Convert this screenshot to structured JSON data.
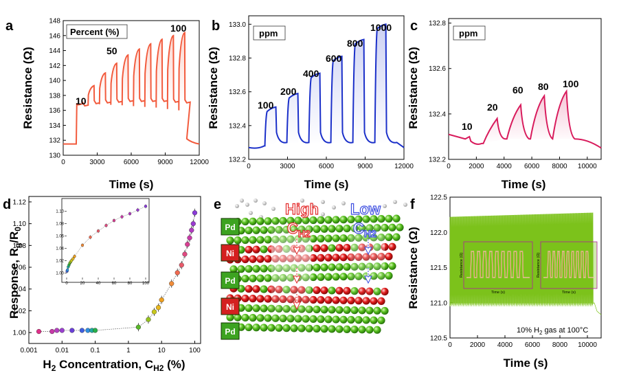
{
  "panels": {
    "a": {
      "letter": "a",
      "box_label": "Percent (%)",
      "ylabel": "Resistance (Ω)",
      "xlabel": "Time (s)",
      "yticks": [
        "130",
        "132",
        "134",
        "136",
        "138",
        "140",
        "142",
        "144",
        "146",
        "148"
      ],
      "xticks": [
        "0",
        "3000",
        "6000",
        "9000",
        "12000"
      ],
      "labels": [
        "10",
        "50",
        "100"
      ]
    },
    "b": {
      "letter": "b",
      "box_label": "ppm",
      "ylabel": "Resistance (Ω)",
      "xlabel": "Time (s)",
      "yticks": [
        "132.2",
        "132.4",
        "132.6",
        "132.8",
        "133.0"
      ],
      "xticks": [
        "0",
        "3000",
        "6000",
        "9000",
        "12000"
      ],
      "labels": [
        "100",
        "200",
        "400",
        "600",
        "800",
        "1000"
      ]
    },
    "c": {
      "letter": "c",
      "box_label": "ppm",
      "ylabel": "Resistance (Ω)",
      "xlabel": "Time (s)",
      "yticks": [
        "132.2",
        "132.4",
        "132.6",
        "132.8"
      ],
      "xticks": [
        "0",
        "2000",
        "4000",
        "6000",
        "8000",
        "10000"
      ],
      "labels": [
        "10",
        "20",
        "60",
        "80",
        "100"
      ]
    },
    "d": {
      "letter": "d",
      "ylabel": "Response, R",
      "ylabel_sub1": "g",
      "ylabel_mid": "/R",
      "ylabel_sub2": "0",
      "xlabel_pre": "H",
      "xlabel_sub": "2",
      "xlabel_mid": " Concentration, C",
      "xlabel_sub2": "H2",
      "xlabel_post": " (%)",
      "yticks": [
        "1.00",
        "1.02",
        "1.04",
        "1.06",
        "1.08",
        "1.10",
        "1.12"
      ],
      "xticks": [
        "0.001",
        "0.01",
        "0.1",
        "1",
        "10",
        "100"
      ],
      "inset_xticks": [
        "0",
        "20",
        "40",
        "60",
        "80",
        "100"
      ],
      "inset_yticks": [
        "1.00",
        "1.02",
        "1.04",
        "1.06",
        "1.08",
        "1.10"
      ]
    },
    "e": {
      "letter": "e",
      "layers": [
        "Pd",
        "Ni",
        "Pd",
        "Ni",
        "Pd"
      ],
      "high_label": "High",
      "high_c": "C",
      "high_sub": "H2",
      "low_label": "Low",
      "low_c": "C",
      "low_sub": "H2"
    },
    "f": {
      "letter": "f",
      "ylabel": "Resistance (Ω)",
      "xlabel": "Time (s)",
      "yticks": [
        "120.5",
        "121.0",
        "121.5",
        "122.0",
        "122.5"
      ],
      "xticks": [
        "0",
        "2000",
        "4000",
        "6000",
        "8000",
        "10000"
      ],
      "annotation_pre": "10% H",
      "annotation_sub": "2",
      "annotation_post": " gas at 100°C",
      "inset_ylabel": "Resistance (Ω)",
      "inset_xlabel": "Time (s)"
    }
  },
  "chart_data": [
    {
      "type": "line",
      "panel": "a",
      "title": "Percent (%)",
      "xlabel": "Time (s)",
      "ylabel": "Resistance (Ω)",
      "xlim": [
        0,
        12000
      ],
      "ylim": [
        130,
        148
      ],
      "color": "#f25a3c",
      "pulse_peaks": [
        136.9,
        139.3,
        141.0,
        142.3,
        143.4,
        144.2,
        144.9,
        145.5,
        146.0,
        146.4
      ],
      "pulse_bases": [
        136.7,
        137.0,
        137.1,
        137.2,
        137.3,
        137.3,
        137.3,
        137.3,
        137.2,
        137.1
      ],
      "baseline": 131.5,
      "labeled": {
        "10": 136.9,
        "50": 143.4,
        "100": 146.4
      }
    },
    {
      "type": "line",
      "panel": "b",
      "title": "ppm",
      "xlabel": "Time (s)",
      "ylabel": "Resistance (Ω)",
      "xlim": [
        0,
        12000
      ],
      "ylim": [
        132.2,
        133.05
      ],
      "color": "#1a2fc9",
      "concentrations_ppm": [
        100,
        200,
        400,
        600,
        800,
        1000
      ],
      "peaks": [
        132.51,
        132.59,
        132.71,
        132.81,
        132.91,
        133.0
      ],
      "baseline": 132.27
    },
    {
      "type": "line",
      "panel": "c",
      "title": "ppm",
      "xlabel": "Time (s)",
      "ylabel": "Resistance (Ω)",
      "xlim": [
        0,
        11000
      ],
      "ylim": [
        132.2,
        132.8
      ],
      "color": "#d81b5c",
      "concentrations_ppm": [
        10,
        20,
        60,
        80,
        100
      ],
      "peaks": [
        132.3,
        132.38,
        132.44,
        132.48,
        132.5
      ],
      "baseline": 132.3
    },
    {
      "type": "scatter",
      "panel": "d",
      "xscale": "log",
      "xlabel": "H2 Concentration, CH2 (%)",
      "ylabel": "Response, Rg/R0",
      "xlim": [
        0.001,
        100
      ],
      "ylim": [
        0.99,
        1.125
      ],
      "x": [
        0.002,
        0.005,
        0.007,
        0.01,
        0.02,
        0.04,
        0.06,
        0.08,
        0.1,
        2,
        4,
        6,
        8,
        10,
        20,
        30,
        40,
        50,
        60,
        70,
        80,
        90,
        100
      ],
      "y": [
        1.001,
        1.001,
        1.002,
        1.002,
        1.002,
        1.002,
        1.002,
        1.002,
        1.002,
        1.005,
        1.012,
        1.019,
        1.023,
        1.03,
        1.045,
        1.055,
        1.062,
        1.072,
        1.081,
        1.087,
        1.094,
        1.1,
        1.11
      ]
    },
    {
      "type": "line",
      "panel": "f",
      "xlabel": "Time (s)",
      "ylabel": "Resistance (Ω)",
      "xlim": [
        0,
        11000
      ],
      "ylim": [
        120.5,
        122.5
      ],
      "color": "#7cc21b",
      "oscillation_high": 122.28,
      "oscillation_low": 120.95,
      "end_value": 120.83
    }
  ]
}
